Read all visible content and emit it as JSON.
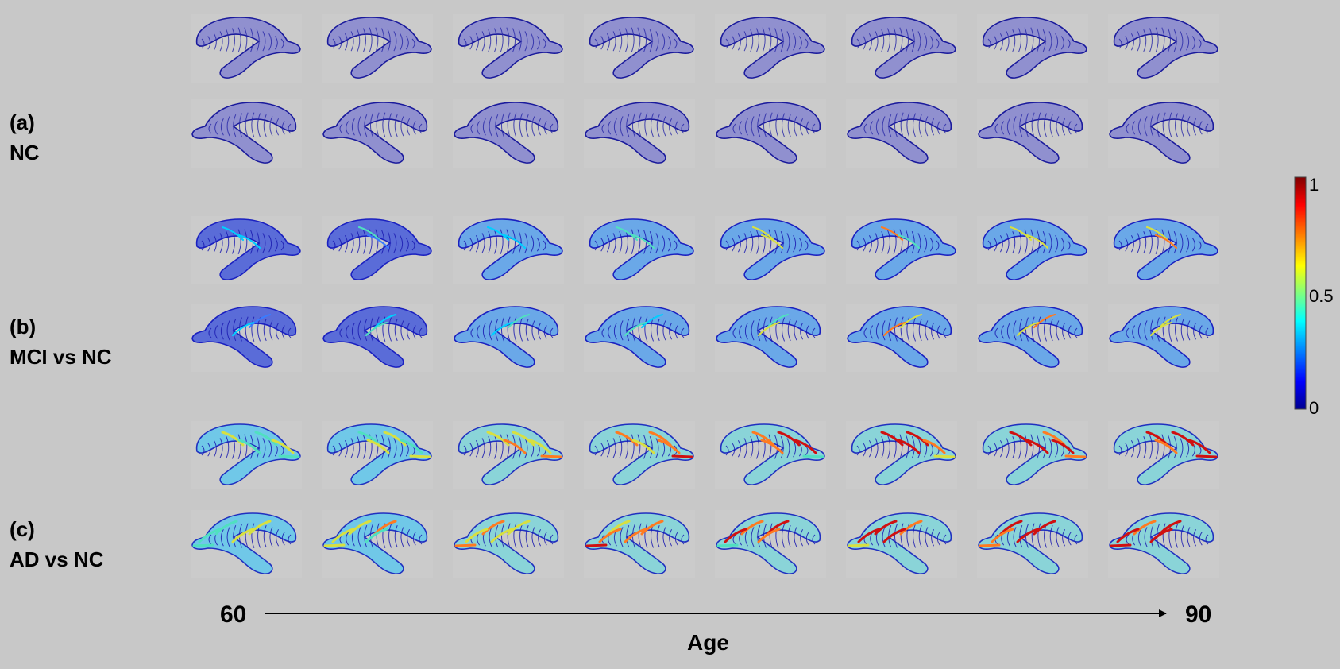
{
  "rows": [
    {
      "tag": "(a)",
      "name": "NC",
      "mode": "nc"
    },
    {
      "tag": "(b)",
      "name": "MCI vs NC",
      "mode": "mci"
    },
    {
      "tag": "(c)",
      "name": "AD vs NC",
      "mode": "ad"
    }
  ],
  "columns": 8,
  "age_axis": {
    "start": "60",
    "end": "90",
    "label": "Age"
  },
  "colorbar": {
    "ticks": [
      "1",
      "0.5",
      "0"
    ],
    "colormap": "jet",
    "stops": [
      "#00008f",
      "#0000ff",
      "#00ffff",
      "#ffff00",
      "#ff0000",
      "#800000"
    ]
  },
  "colors": {
    "nc_mesh": "#1a1a9c",
    "background": "#c8c8c8"
  }
}
